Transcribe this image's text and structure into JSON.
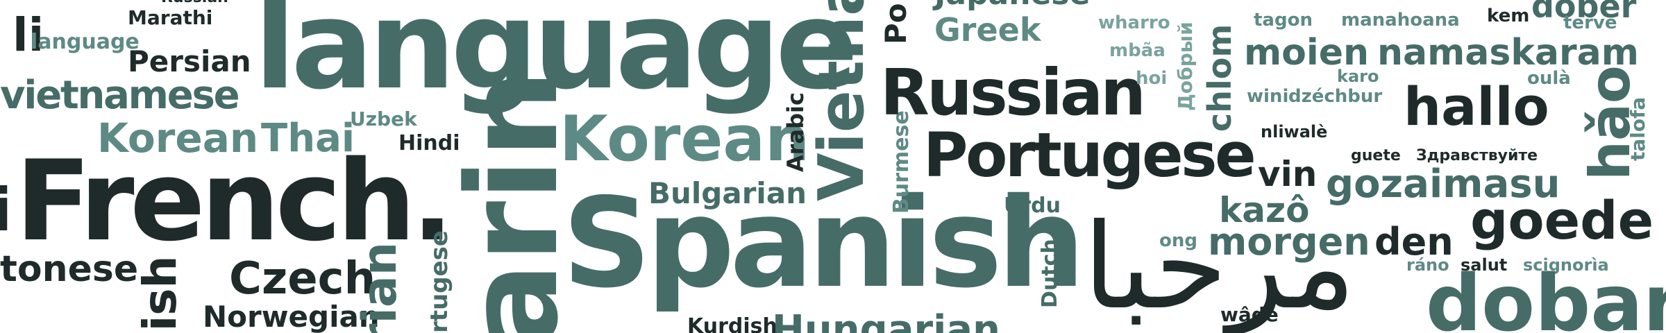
{
  "words": {
    "russian_top": "Russian",
    "marathi": "Marathi",
    "language_small": "language",
    "persian": "Persian",
    "vietnamese": "vietnamese",
    "korean_small": "Korean",
    "thai": "Thai",
    "uzbek": "Uzbek",
    "hindi": "Hindi",
    "french": "French.",
    "cantonese": "tonese",
    "czech": "Czech",
    "norwegian": "Norwegian",
    "english_v": "lish",
    "language_big": "language",
    "korean_big": "Korean",
    "bulgarian": "Bulgarian",
    "spanish": "Spanish",
    "kurdish": "Kurdish",
    "hungarian": "Hungarian",
    "mandarin_v": "arin",
    "italian_v": "rian",
    "portugese_v": "rtugese",
    "arabic_v": "Arabic",
    "vietnam_v": "Vietna",
    "burmese_v": "Burmese",
    "urdu": "Urdu",
    "dutch_v": "Dutch",
    "japanese": "Japanese",
    "greek": "Greek",
    "russian_big": "Russian",
    "portugese_big": "Portugese",
    "po_v": "Po",
    "wharro": "wharro",
    "mbaa": "mbãa",
    "hoi": "hoi",
    "dobry_v": "Добрый",
    "chlom_v": "chlom",
    "tagon": "tagon",
    "manahoana": "manahoana",
    "kem": "kem",
    "dober": "dober",
    "terve": "terve",
    "moien": "moien",
    "namaskaram": "namaskaram",
    "karo": "karo",
    "oula": "oulà",
    "wini": "wini",
    "dzechbur": "dzéchbur",
    "hallo": "hallo",
    "nliwale": "nliwalè",
    "guete": "guete",
    "zdravstvuyte": "Здравствуйте",
    "hao_v": "hǎo",
    "talofa_v": "talofa",
    "vin": "vin",
    "gozaimasu": "gozaimasu",
    "kazo": "kazô",
    "goede": "goede",
    "ong": "ong",
    "morgen": "morgen",
    "den": "den",
    "rano": "ráno",
    "salut": "salut",
    "scignoria": "scignorìa",
    "marhaba": "مرحبا",
    "dobar": "dobar",
    "wade": "wâde",
    "li": "li",
    "i_left": "i"
  }
}
